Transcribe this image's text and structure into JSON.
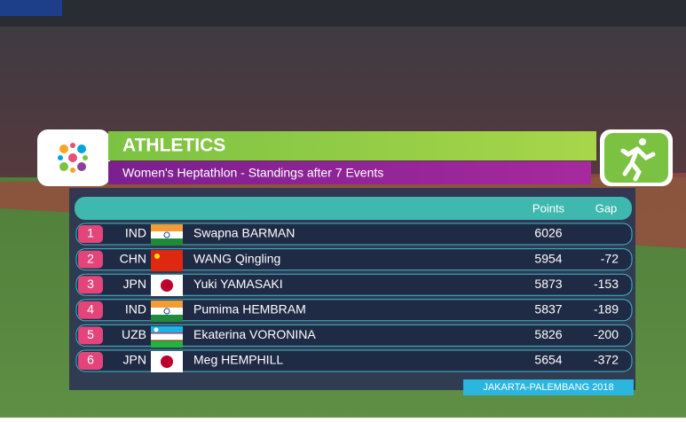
{
  "header": {
    "title": "ATHLETICS",
    "subtitle": "Women's Heptathlon - Standings after 7 Events"
  },
  "table": {
    "columns": [
      "Points",
      "Gap"
    ],
    "rows": [
      {
        "rank": 1,
        "country": "IND",
        "name": "Swapna BARMAN",
        "points": 6026
      },
      {
        "rank": 2,
        "country": "CHN",
        "name": "WANG Qingling",
        "points": 5954,
        "gap": -72
      },
      {
        "rank": 3,
        "country": "JPN",
        "name": "Yuki YAMASAKI",
        "points": 5873,
        "gap": -153
      },
      {
        "rank": 4,
        "country": "IND",
        "name": "Pumima HEMBRAM",
        "points": 5837,
        "gap": -189
      },
      {
        "rank": 5,
        "country": "UZB",
        "name": "Ekaterina VORONINA",
        "points": 5826,
        "gap": -200
      },
      {
        "rank": 6,
        "country": "JPN",
        "name": "Meg HEMPHILL",
        "points": 5654,
        "gap": -372
      }
    ]
  },
  "footer": "JAKARTA-PALEMBANG 2018"
}
